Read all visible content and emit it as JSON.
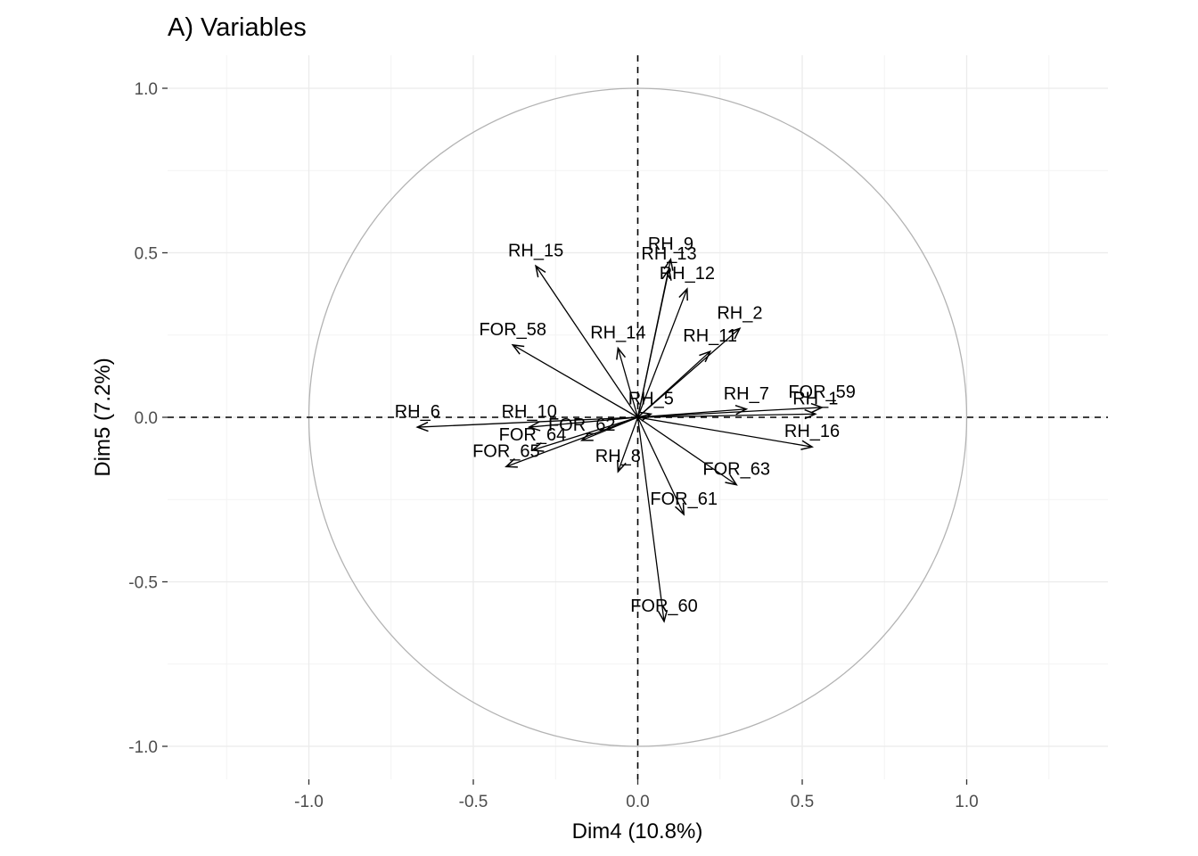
{
  "chart_data": {
    "type": "scatter",
    "subtype": "pca-correlation-circle",
    "title": "A) Variables",
    "xlabel": "Dim4 (10.8%)",
    "ylabel": "Dim5 (7.2%)",
    "xlim": [
      -1.4,
      1.4
    ],
    "ylim": [
      -1.1,
      1.1
    ],
    "x_ticks": [
      -1.0,
      -0.5,
      0.0,
      0.5,
      1.0
    ],
    "x_tick_labels": [
      "-1.0",
      "-0.5",
      "0.0",
      "0.5",
      "1.0"
    ],
    "y_ticks": [
      -1.0,
      -0.5,
      0.0,
      0.5,
      1.0
    ],
    "y_tick_labels": [
      "-1.0",
      "-0.5",
      "0.0",
      "0.5",
      "1.0"
    ],
    "grid": true,
    "unit_circle": true,
    "reference_lines": "dashed at x=0 and y=0",
    "colors": {
      "arrow": "#000000",
      "circle": "#b3b3b3",
      "grid": "#ebebeb",
      "tick_label": "#4d4d4d"
    },
    "variables": [
      {
        "name": "RH_15",
        "x": -0.31,
        "y": 0.46
      },
      {
        "name": "RH_9",
        "x": 0.1,
        "y": 0.48
      },
      {
        "name": "RH_13",
        "x": 0.095,
        "y": 0.45
      },
      {
        "name": "RH_12",
        "x": 0.15,
        "y": 0.39
      },
      {
        "name": "RH_2",
        "x": 0.31,
        "y": 0.27
      },
      {
        "name": "RH_11",
        "x": 0.22,
        "y": 0.2
      },
      {
        "name": "RH_14",
        "x": -0.06,
        "y": 0.21
      },
      {
        "name": "FOR_58",
        "x": -0.38,
        "y": 0.22
      },
      {
        "name": "RH_7",
        "x": 0.33,
        "y": 0.025
      },
      {
        "name": "FOR_59",
        "x": 0.56,
        "y": 0.03
      },
      {
        "name": "RH_1",
        "x": 0.54,
        "y": 0.01
      },
      {
        "name": "RH_16",
        "x": 0.53,
        "y": -0.09
      },
      {
        "name": "RH_5",
        "x": 0.04,
        "y": 0.01
      },
      {
        "name": "RH_6",
        "x": -0.67,
        "y": -0.03
      },
      {
        "name": "RH_10",
        "x": -0.33,
        "y": -0.03
      },
      {
        "name": "FOR_62",
        "x": -0.17,
        "y": -0.07
      },
      {
        "name": "FOR_64",
        "x": -0.32,
        "y": -0.1
      },
      {
        "name": "FOR_65",
        "x": -0.4,
        "y": -0.15
      },
      {
        "name": "RH_8",
        "x": -0.06,
        "y": -0.165
      },
      {
        "name": "FOR_63",
        "x": 0.3,
        "y": -0.205
      },
      {
        "name": "FOR_61",
        "x": 0.14,
        "y": -0.295
      },
      {
        "name": "FOR_60",
        "x": 0.08,
        "y": -0.62
      }
    ]
  }
}
